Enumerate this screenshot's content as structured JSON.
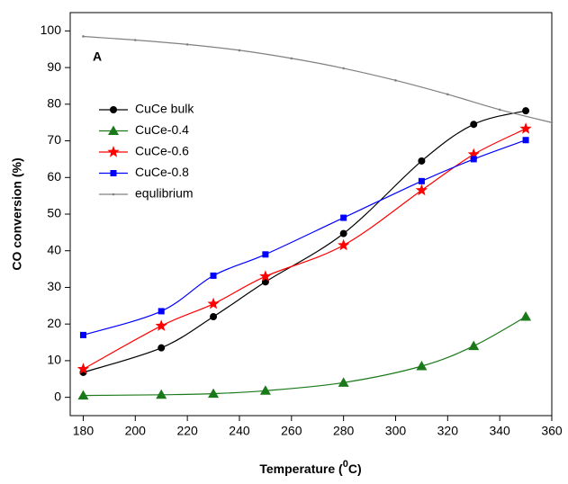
{
  "chart_data": {
    "type": "line",
    "annotation": "A",
    "xlabel_parts": [
      "Temperature (",
      "0",
      "C)"
    ],
    "ylabel": "CO conversion (%)",
    "xlim": [
      175,
      360
    ],
    "ylim": [
      -5,
      105
    ],
    "xticks": [
      180,
      200,
      220,
      240,
      260,
      280,
      300,
      320,
      340,
      360
    ],
    "yticks": [
      0,
      10,
      20,
      30,
      40,
      50,
      60,
      70,
      80,
      90,
      100
    ],
    "legend": "upper left",
    "series": [
      {
        "name": "CuCe bulk",
        "color": "#000000",
        "marker": "circle",
        "x": [
          180,
          210,
          230,
          250,
          280,
          310,
          330,
          350
        ],
        "values": [
          6.8,
          13.5,
          22,
          31.5,
          44.7,
          64.5,
          74.5,
          78.2
        ]
      },
      {
        "name": "CuCe-0.4",
        "color": "#1a7a1a",
        "marker": "triangle",
        "x": [
          180,
          210,
          230,
          250,
          280,
          310,
          330,
          350
        ],
        "values": [
          0.5,
          0.7,
          1,
          1.8,
          4,
          8.5,
          14,
          22
        ]
      },
      {
        "name": "CuCe-0.6",
        "color": "#ff0000",
        "marker": "star",
        "x": [
          180,
          210,
          230,
          250,
          280,
          310,
          330,
          350
        ],
        "values": [
          7.7,
          19.5,
          25.5,
          33,
          41.5,
          56.5,
          66.3,
          73.3
        ]
      },
      {
        "name": "CuCe-0.8",
        "color": "#0000ff",
        "marker": "square",
        "x": [
          180,
          210,
          230,
          250,
          280,
          310,
          330,
          350
        ],
        "values": [
          17,
          23.5,
          33.2,
          39,
          49,
          59,
          65,
          70.2
        ]
      },
      {
        "name": "equlibrium",
        "color": "#808080",
        "marker": "dot",
        "x": [
          180,
          200,
          220,
          240,
          260,
          280,
          300,
          320,
          340,
          360
        ],
        "values": [
          98.5,
          97.5,
          96.3,
          94.7,
          92.5,
          89.8,
          86.5,
          82.7,
          78.5,
          75
        ]
      }
    ]
  }
}
